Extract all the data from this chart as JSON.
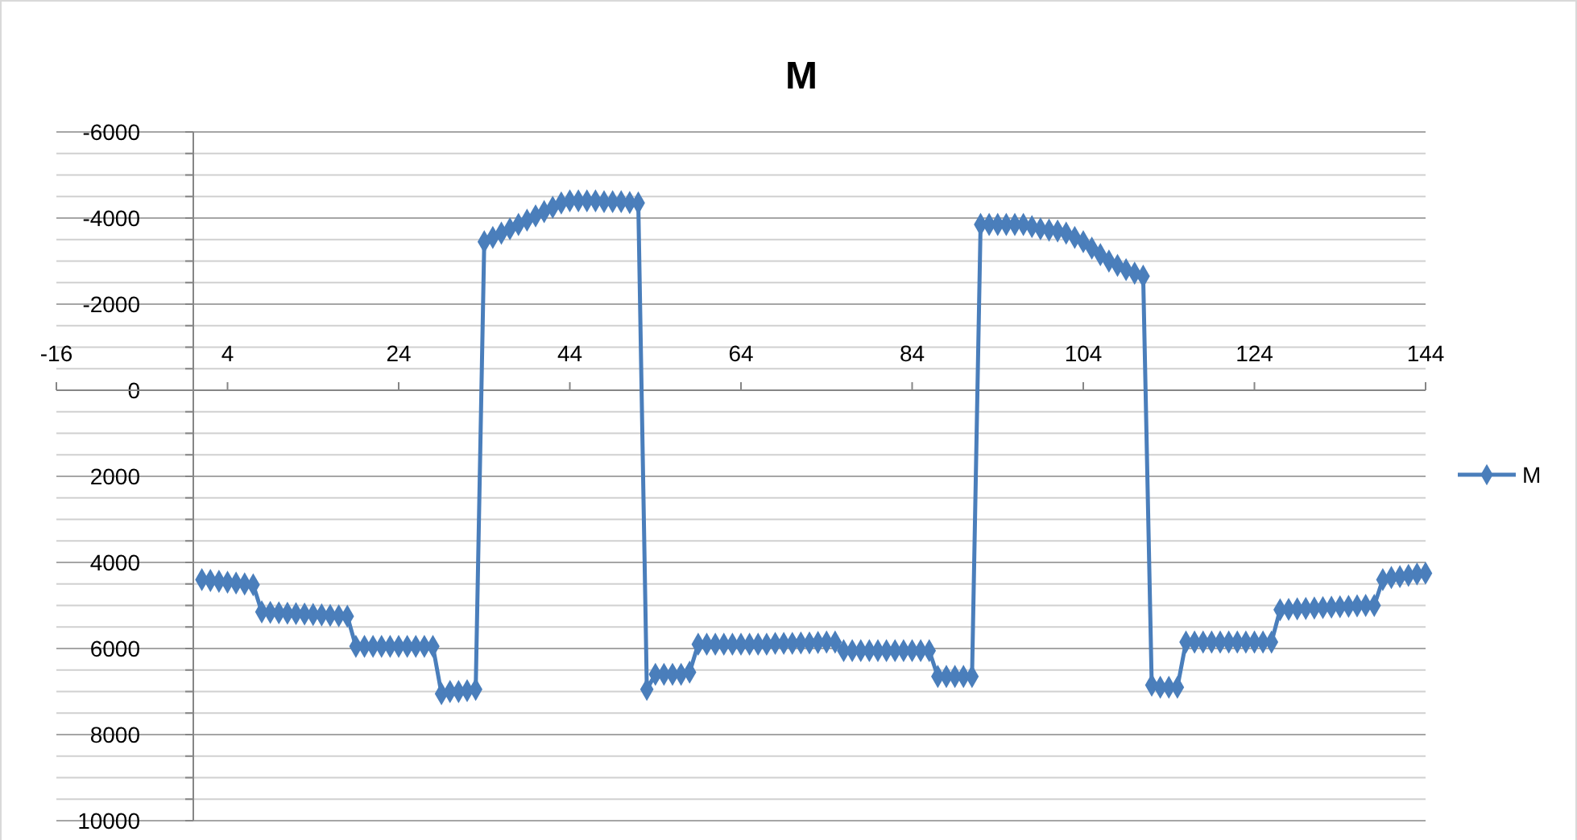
{
  "chart_data": {
    "type": "line",
    "title": "M",
    "marker": "diamond",
    "line_style": "solid",
    "grid": "y",
    "legend": "right",
    "x": [
      1,
      2,
      3,
      4,
      5,
      6,
      7,
      8,
      9,
      10,
      11,
      12,
      13,
      14,
      15,
      16,
      17,
      18,
      19,
      20,
      21,
      22,
      23,
      24,
      25,
      26,
      27,
      28,
      29,
      30,
      31,
      32,
      33,
      34,
      35,
      36,
      37,
      38,
      39,
      40,
      41,
      42,
      43,
      44,
      45,
      46,
      47,
      48,
      49,
      50,
      51,
      52,
      53,
      54,
      55,
      56,
      57,
      58,
      59,
      60,
      61,
      62,
      63,
      64,
      65,
      66,
      67,
      68,
      69,
      70,
      71,
      72,
      73,
      74,
      75,
      76,
      77,
      78,
      79,
      80,
      81,
      82,
      83,
      84,
      85,
      86,
      87,
      88,
      89,
      90,
      91,
      92,
      93,
      94,
      95,
      96,
      97,
      98,
      99,
      100,
      101,
      102,
      103,
      104,
      105,
      106,
      107,
      108,
      109,
      110,
      111,
      112,
      113,
      114,
      115,
      116,
      117,
      118,
      119,
      120,
      121,
      122,
      123,
      124,
      125,
      126,
      127,
      128,
      129,
      130,
      131,
      132,
      133,
      134,
      135,
      136,
      137,
      138,
      139,
      140,
      141,
      142,
      143,
      144
    ],
    "series": [
      {
        "name": "M",
        "color": "#4a7ebb",
        "values": [
          4400,
          4420,
          4440,
          4460,
          4480,
          4500,
          4520,
          5150,
          5160,
          5170,
          5180,
          5190,
          5200,
          5210,
          5220,
          5230,
          5240,
          5250,
          5950,
          5950,
          5950,
          5950,
          5950,
          5950,
          5950,
          5950,
          5950,
          5950,
          7050,
          7000,
          7000,
          6980,
          6950,
          -3450,
          -3550,
          -3650,
          -3750,
          -3850,
          -3950,
          -4050,
          -4150,
          -4250,
          -4350,
          -4400,
          -4400,
          -4400,
          -4400,
          -4380,
          -4380,
          -4380,
          -4360,
          -4350,
          6950,
          6600,
          6600,
          6600,
          6600,
          6550,
          5900,
          5900,
          5900,
          5900,
          5900,
          5900,
          5900,
          5900,
          5900,
          5880,
          5880,
          5880,
          5870,
          5870,
          5860,
          5850,
          5850,
          6050,
          6050,
          6050,
          6050,
          6050,
          6050,
          6050,
          6050,
          6050,
          6050,
          6050,
          6650,
          6650,
          6650,
          6650,
          6650,
          -3850,
          -3850,
          -3850,
          -3850,
          -3850,
          -3850,
          -3800,
          -3750,
          -3720,
          -3700,
          -3650,
          -3550,
          -3450,
          -3300,
          -3150,
          -3000,
          -2900,
          -2800,
          -2720,
          -2650,
          6850,
          6900,
          6900,
          6900,
          5850,
          5850,
          5850,
          5850,
          5850,
          5850,
          5850,
          5850,
          5850,
          5850,
          5850,
          5100,
          5090,
          5080,
          5070,
          5060,
          5050,
          5040,
          5030,
          5020,
          5010,
          5000,
          5000,
          4400,
          4350,
          4330,
          4300,
          4270,
          4250
        ]
      }
    ],
    "xlim": [
      -16,
      144
    ],
    "xticks": [
      -16,
      4,
      24,
      44,
      64,
      84,
      104,
      124,
      144
    ],
    "ylim": [
      10000,
      -6000
    ],
    "yticks": [
      -6000,
      {
        "value": -5500,
        "label": null
      },
      {
        "value": -5000,
        "label": null
      },
      {
        "value": -4500,
        "label": null
      },
      -4000,
      {
        "value": -3500,
        "label": null
      },
      {
        "value": -3000,
        "label": null
      },
      {
        "value": -2500,
        "label": null
      },
      -2000,
      {
        "value": -1500,
        "label": null
      },
      {
        "value": -1000,
        "label": null
      },
      {
        "value": -500,
        "label": null
      },
      0,
      {
        "value": 500,
        "label": null
      },
      {
        "value": 1000,
        "label": null
      },
      {
        "value": 1500,
        "label": null
      },
      2000,
      {
        "value": 2500,
        "label": null
      },
      {
        "value": 3000,
        "label": null
      },
      {
        "value": 3500,
        "label": null
      },
      4000,
      {
        "value": 4500,
        "label": null
      },
      {
        "value": 5000,
        "label": null
      },
      {
        "value": 5500,
        "label": null
      },
      6000,
      {
        "value": 6500,
        "label": null
      },
      {
        "value": 7000,
        "label": null
      },
      {
        "value": 7500,
        "label": null
      },
      8000,
      {
        "value": 8500,
        "label": null
      },
      {
        "value": 9000,
        "label": null
      },
      {
        "value": 9500,
        "label": null
      },
      10000
    ]
  }
}
